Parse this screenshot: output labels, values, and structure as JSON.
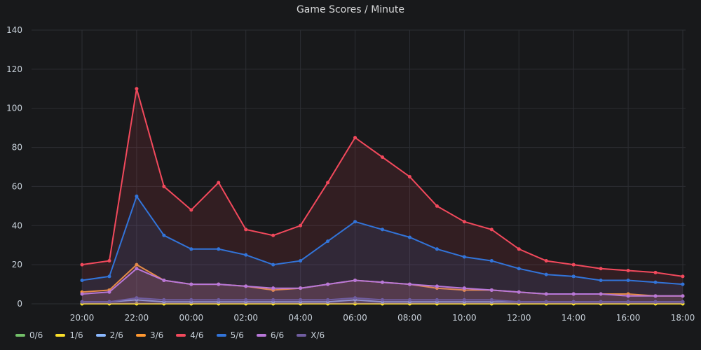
{
  "panel": {
    "title": "Game Scores / Minute"
  },
  "chart_data": {
    "type": "line",
    "title": "Game Scores / Minute",
    "xlabel": "",
    "ylabel": "",
    "x_ticks": [
      "20:00",
      "22:00",
      "00:00",
      "02:00",
      "04:00",
      "06:00",
      "08:00",
      "10:00",
      "12:00",
      "14:00",
      "16:00",
      "18:00"
    ],
    "y_ticks": [
      0,
      20,
      40,
      60,
      80,
      100,
      120,
      140
    ],
    "ylim": [
      0,
      140
    ],
    "grid": true,
    "legend_position": "bottom-left",
    "x": [
      "20:00",
      "21:00",
      "22:00",
      "23:00",
      "00:00",
      "01:00",
      "02:00",
      "03:00",
      "04:00",
      "05:00",
      "06:00",
      "07:00",
      "08:00",
      "09:00",
      "10:00",
      "11:00",
      "12:00",
      "13:00",
      "14:00",
      "15:00",
      "16:00",
      "17:00",
      "18:00"
    ],
    "series": [
      {
        "name": "0/6",
        "color": "#73bf69",
        "values": [
          0,
          0,
          0,
          0,
          0,
          0,
          0,
          0,
          0,
          0,
          0,
          0,
          0,
          0,
          0,
          0,
          0,
          0,
          0,
          0,
          0,
          0,
          0
        ]
      },
      {
        "name": "1/6",
        "color": "#fade2a",
        "values": [
          0,
          0,
          0,
          0,
          0,
          0,
          0,
          0,
          0,
          0,
          0,
          0,
          0,
          0,
          0,
          0,
          0,
          0,
          0,
          0,
          0,
          0,
          0
        ]
      },
      {
        "name": "2/6",
        "color": "#8ab8ff",
        "values": [
          1,
          1,
          2,
          1,
          1,
          1,
          1,
          1,
          1,
          1,
          2,
          1,
          1,
          1,
          1,
          1,
          1,
          1,
          1,
          1,
          1,
          1,
          1
        ]
      },
      {
        "name": "3/6",
        "color": "#ff9830",
        "values": [
          6,
          7,
          20,
          12,
          10,
          10,
          9,
          7,
          8,
          10,
          12,
          11,
          10,
          8,
          7,
          7,
          6,
          5,
          5,
          5,
          5,
          4,
          4
        ]
      },
      {
        "name": "4/6",
        "color": "#f2495c",
        "values": [
          20,
          22,
          110,
          60,
          48,
          62,
          38,
          35,
          40,
          62,
          85,
          75,
          65,
          50,
          42,
          38,
          28,
          22,
          20,
          18,
          17,
          16,
          14
        ]
      },
      {
        "name": "5/6",
        "color": "#3274d9",
        "values": [
          12,
          14,
          55,
          35,
          28,
          28,
          25,
          20,
          22,
          32,
          42,
          38,
          34,
          28,
          24,
          22,
          18,
          15,
          14,
          12,
          12,
          11,
          10
        ]
      },
      {
        "name": "6/6",
        "color": "#b877d9",
        "values": [
          5,
          6,
          18,
          12,
          10,
          10,
          9,
          8,
          8,
          10,
          12,
          11,
          10,
          9,
          8,
          7,
          6,
          5,
          5,
          5,
          4,
          4,
          4
        ]
      },
      {
        "name": "X/6",
        "color": "#705da0",
        "values": [
          1,
          1,
          3,
          2,
          2,
          2,
          2,
          2,
          2,
          2,
          3,
          2,
          2,
          2,
          2,
          2,
          1,
          1,
          1,
          1,
          1,
          1,
          1
        ]
      }
    ]
  }
}
